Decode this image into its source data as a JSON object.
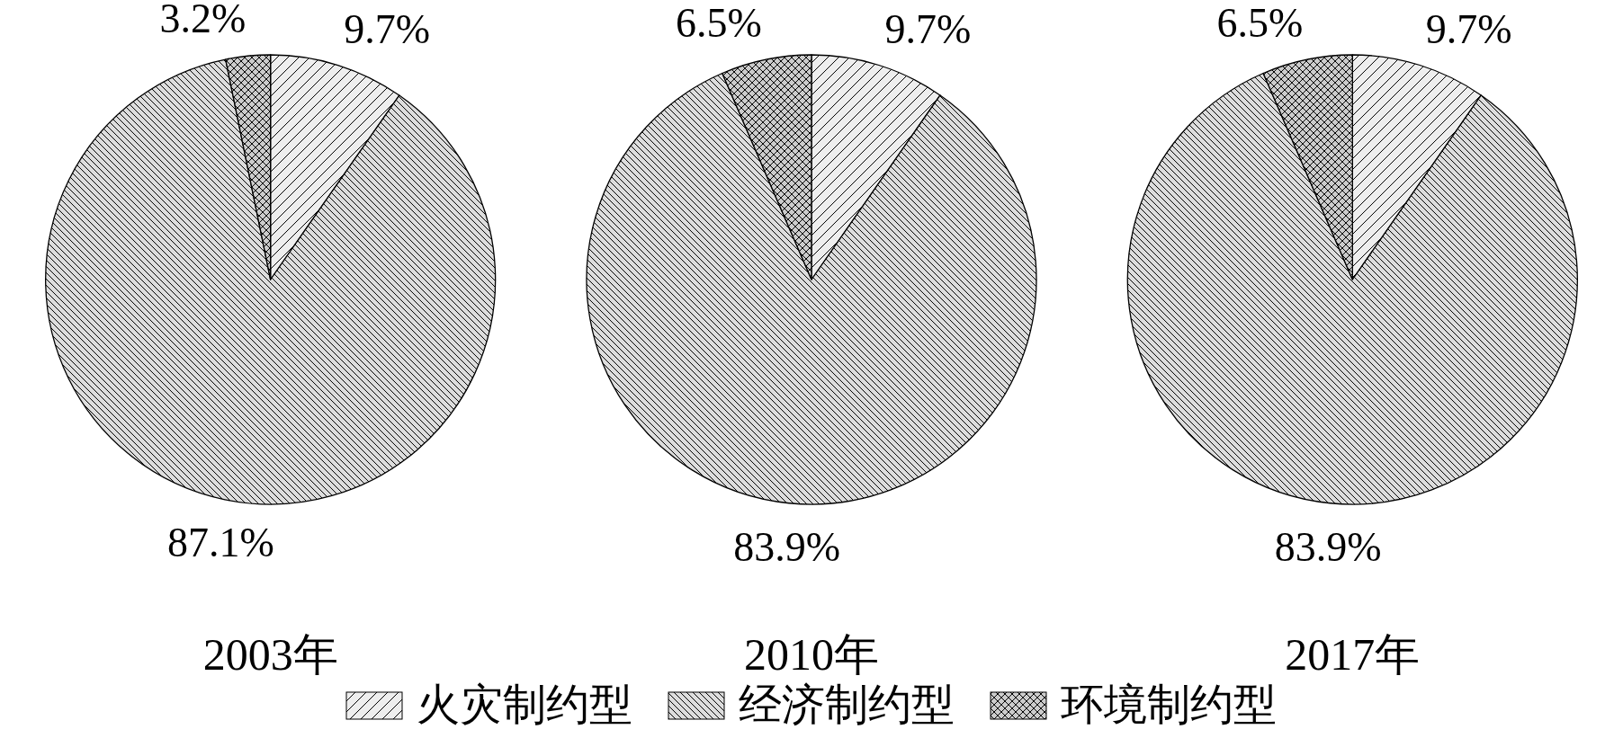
{
  "chart_data": [
    {
      "type": "pie",
      "title": "2003年",
      "categories": [
        "火灾制约型",
        "经济制约型",
        "环境制约型"
      ],
      "values": [
        9.7,
        87.1,
        3.2
      ],
      "colors": [
        "#eeeeee",
        "#dddddd",
        "#cccccc"
      ],
      "data_labels": true,
      "value_labels": [
        "9.7%",
        "87.1%",
        "3.2%"
      ],
      "legend": "bottom"
    },
    {
      "type": "pie",
      "title": "2010年",
      "categories": [
        null,
        null,
        null
      ],
      "values": [
        9.7,
        83.9,
        6.5
      ],
      "colors": [
        "#eeeeee",
        "#dddddd",
        "#cccccc"
      ],
      "data_labels": true,
      "value_labels": [
        "9.7%",
        "83.9%",
        "6.5%"
      ]
    },
    {
      "type": "pie",
      "title": "2017年",
      "categories": [
        null,
        null,
        null
      ],
      "values": [
        9.7,
        83.9,
        6.5
      ],
      "colors": [
        "#eeeeee",
        "#dddddd",
        "#cccccc"
      ],
      "data_labels": true,
      "value_labels": [
        "9.7%",
        "83.9%",
        "6.5%"
      ]
    }
  ]
}
